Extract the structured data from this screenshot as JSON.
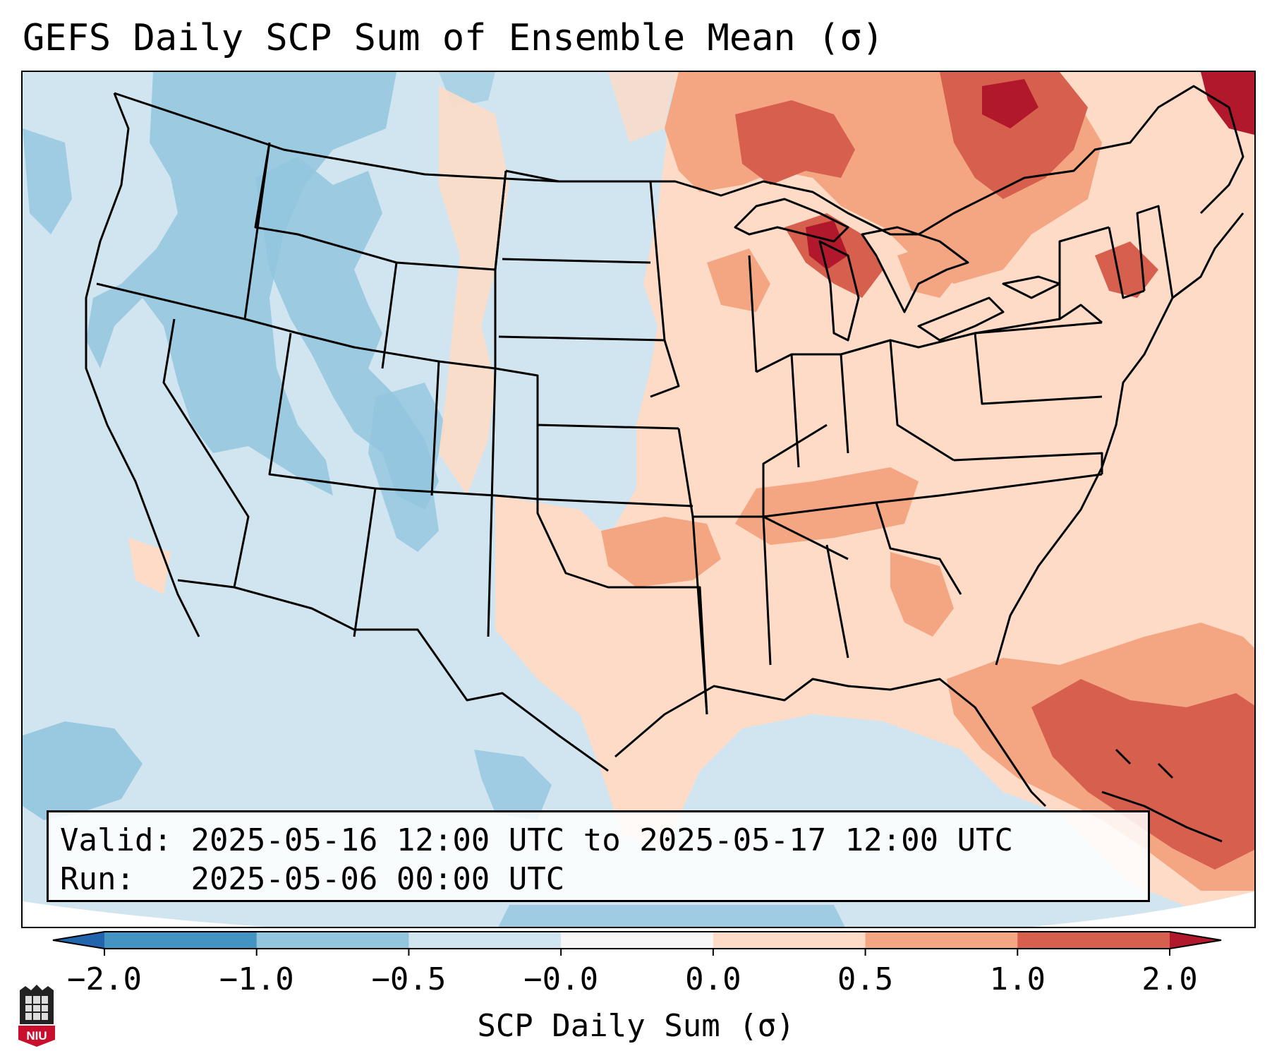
{
  "title": "GEFS Daily SCP Sum of Ensemble Mean (σ)",
  "info": {
    "valid_label": "Valid:",
    "valid_value": "2025-05-16 12:00 UTC to 2025-05-17 12:00 UTC",
    "run_label": "Run:",
    "run_value": "2025-05-06 00:00 UTC"
  },
  "colorbar": {
    "label": "SCP Daily Sum (σ)",
    "bounds": [
      -2.0,
      -1.0,
      -0.5,
      -0.0,
      0.0,
      0.5,
      1.0,
      2.0
    ],
    "tick_labels": [
      "−2.0",
      "−1.0",
      "−0.5",
      "−0.0",
      "0.0",
      "0.5",
      "1.0",
      "2.0"
    ],
    "colors": [
      "#4393c3",
      "#92c5de",
      "#d1e5f0",
      "#f7f7f7",
      "#fddbc7",
      "#f4a582",
      "#d6604d"
    ],
    "extend_low_color": "#2166ac",
    "extend_high_color": "#b2182b"
  },
  "map": {
    "projection": "Lambert conformal, CONUS",
    "base_color": "#d1e5f0",
    "boundaries": "states, coastlines, Great Lakes"
  },
  "logo": {
    "text": "NIU",
    "icon": "niu-logo-icon"
  }
}
